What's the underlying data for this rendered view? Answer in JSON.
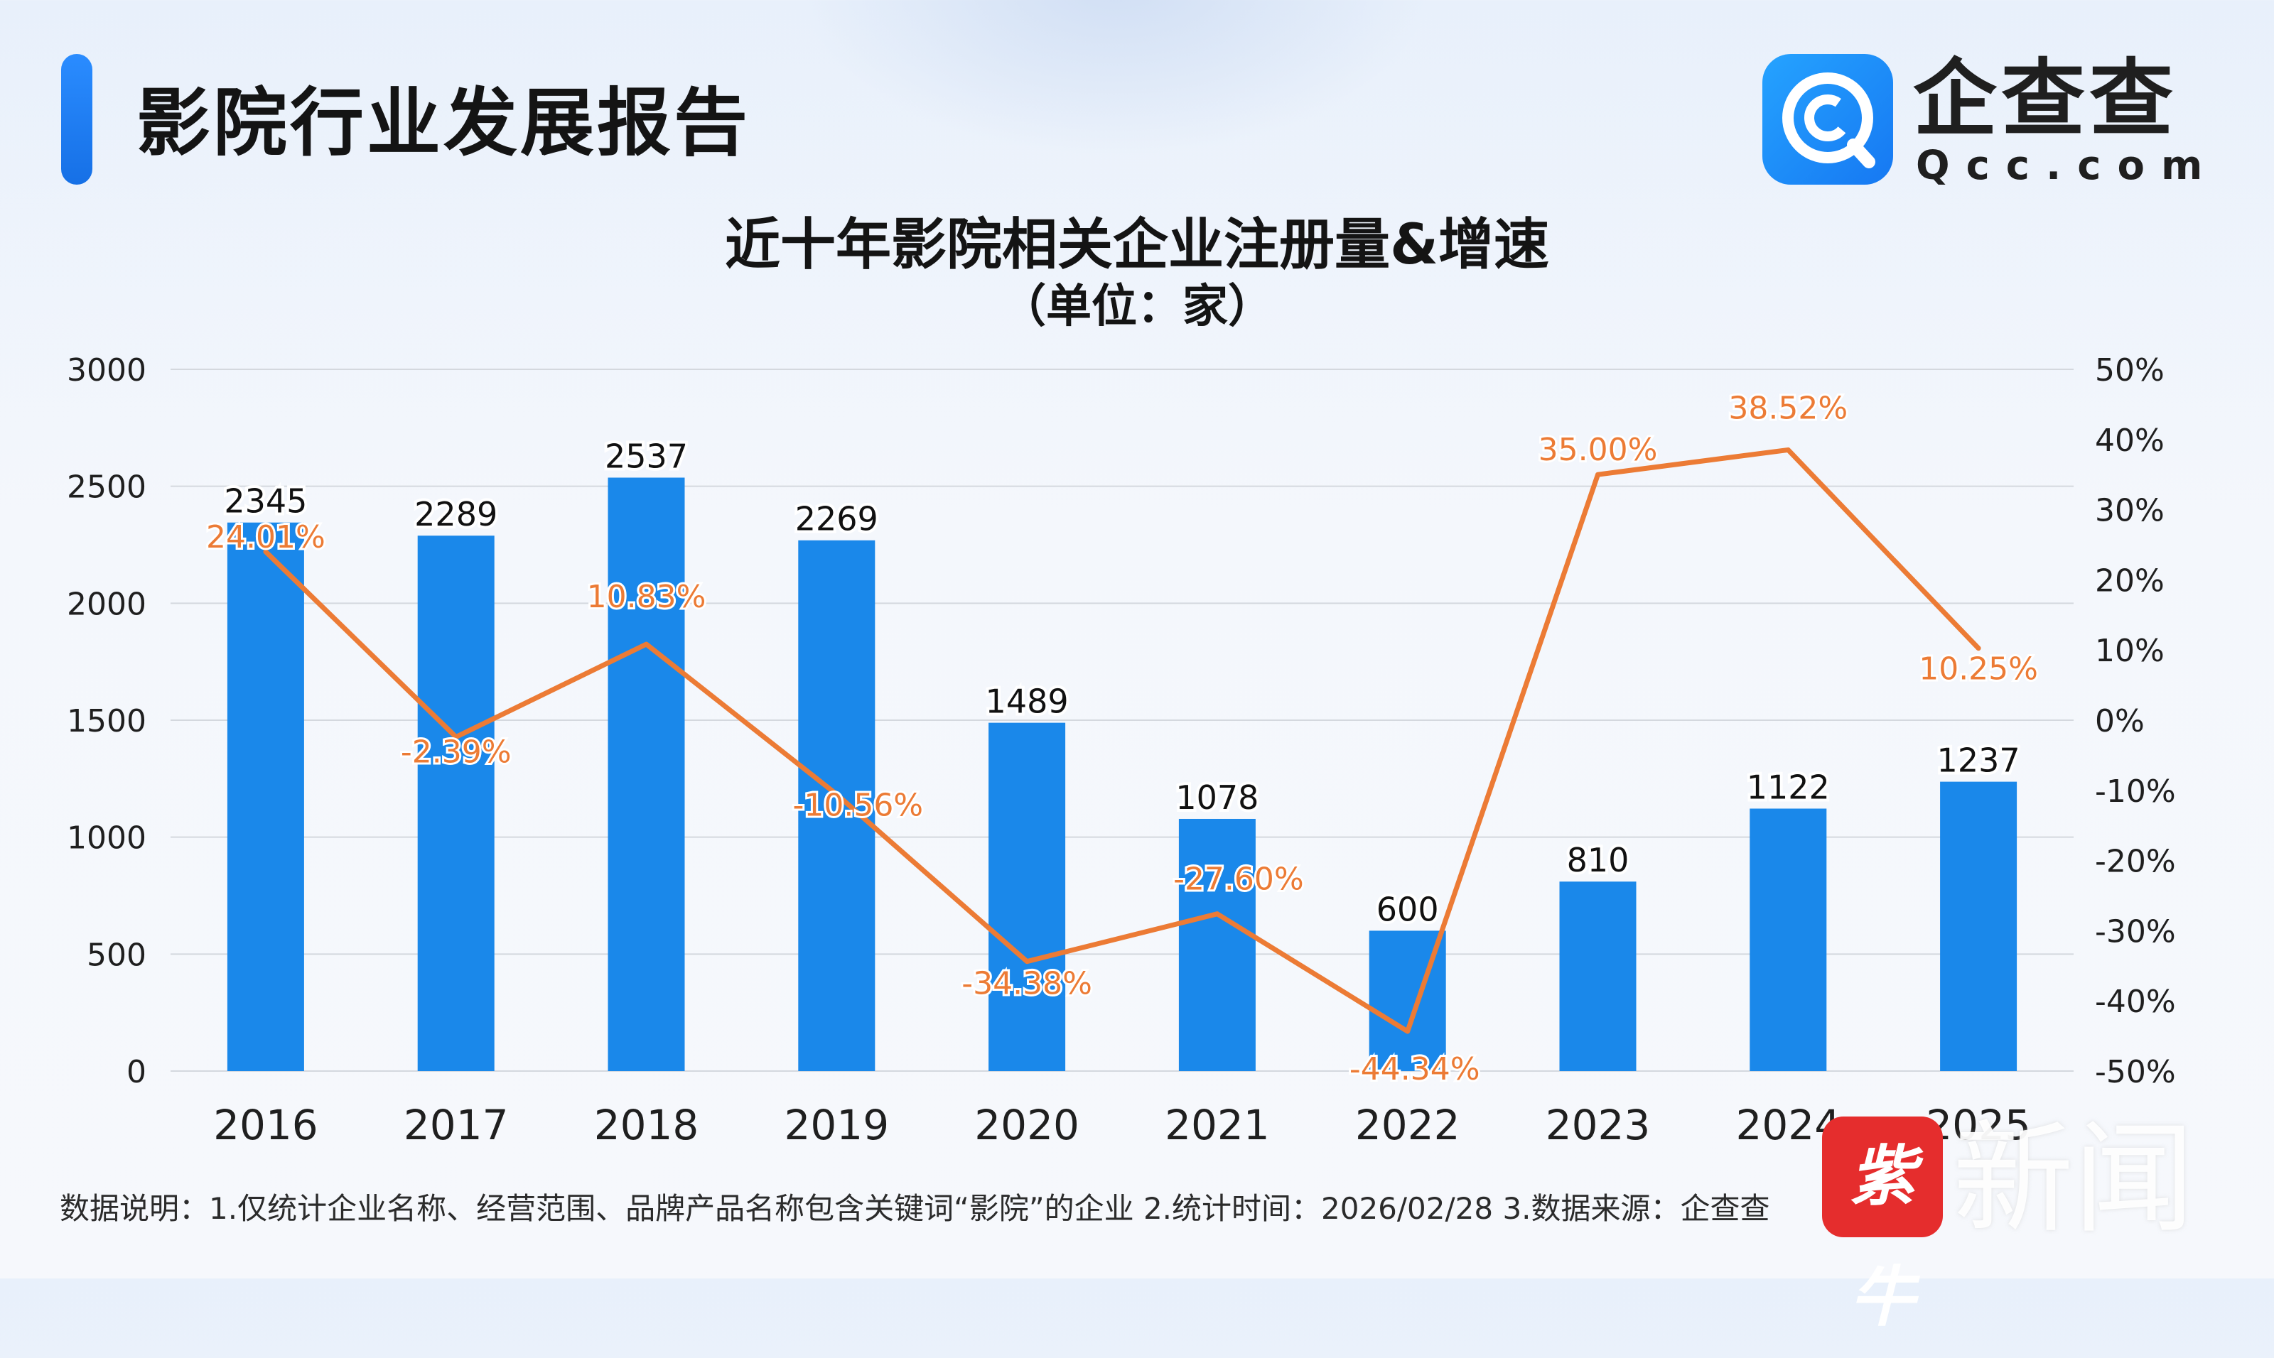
{
  "header": {
    "title": "影院行业发展报告",
    "logo_name": "企查查",
    "logo_domain": "Qcc.com",
    "accent_color": "#1f7ff0"
  },
  "chart_data": {
    "type": "bar",
    "title": "近十年影院相关企业注册量&增速",
    "subtitle": "（单位：家）",
    "categories": [
      "2016",
      "2017",
      "2018",
      "2019",
      "2020",
      "2021",
      "2022",
      "2023",
      "2024",
      "2025"
    ],
    "series": [
      {
        "type": "bar",
        "axis": "left",
        "color": "#1a88ea",
        "values": [
          2345,
          2289,
          2537,
          2269,
          1489,
          1078,
          600,
          810,
          1122,
          1237
        ],
        "labels": [
          "2345",
          "2289",
          "2537",
          "2269",
          "1489",
          "1078",
          "600",
          "810",
          "1122",
          "1237"
        ]
      },
      {
        "type": "line",
        "axis": "right",
        "color": "#ec7b35",
        "values": [
          24.01,
          -2.39,
          10.83,
          -10.56,
          -34.38,
          -27.6,
          -44.34,
          35.0,
          38.52,
          10.25
        ],
        "labels": [
          "24.01%",
          "-2.39%",
          "10.83%",
          "-10.56%",
          "-34.38%",
          "-27.60%",
          "-44.34%",
          "35.00%",
          "38.52%",
          "10.25%"
        ]
      }
    ],
    "ylim": [
      0,
      3000
    ],
    "yticks": [
      "0",
      "500",
      "1000",
      "1500",
      "2000",
      "2500",
      "3000"
    ],
    "y2lim": [
      -50,
      50
    ],
    "y2ticks": [
      "-50%",
      "-40%",
      "-30%",
      "-20%",
      "-10%",
      "0%",
      "10%",
      "20%",
      "30%",
      "40%",
      "50%"
    ],
    "grid": true,
    "legend": "none"
  },
  "footnote": "数据说明：1.仅统计企业名称、经营范围、品牌产品名称包含关键词“影院”的企业   2.统计时间：2026/02/28   3.数据来源：企查查",
  "watermark": {
    "seal": "紫牛",
    "text": "新闻"
  }
}
